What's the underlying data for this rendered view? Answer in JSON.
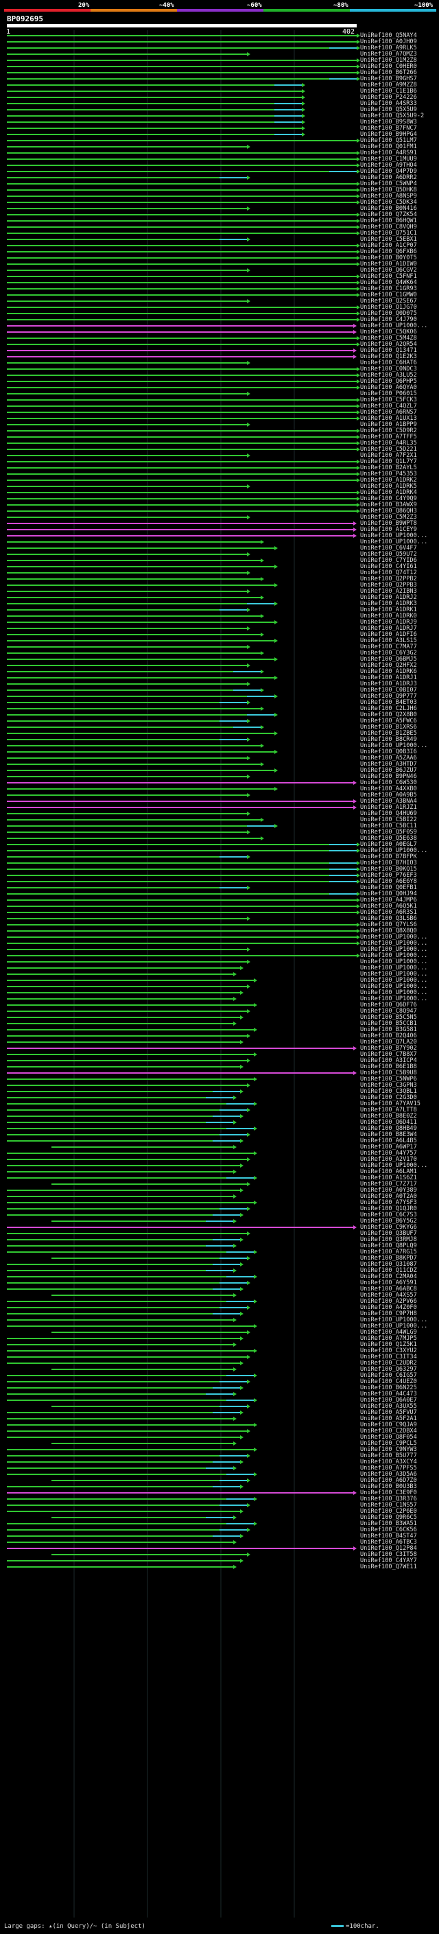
{
  "header": {
    "scale_labels": [
      "20%",
      "~40%",
      "~60%",
      "~80%",
      "~100%"
    ],
    "scale_colors": [
      "#e0202a",
      "#e07a14",
      "#8a2ec8",
      "#20b02a",
      "#26b7d8"
    ],
    "query_id": "BP092695",
    "pos_start": "1",
    "pos_end": "402"
  },
  "colors": {
    "green": "#31c832",
    "cyan": "#3ccbdc",
    "magenta": "#d64ad6",
    "white": "#ffffff"
  },
  "hits": [
    "UniRef100_Q5NAY4",
    "UniRef100_A0JH09",
    "UniRef100_A9RLK5",
    "UniRef100_A7QMZ3",
    "UniRef100_Q1M2Z8",
    "UniRef100_C0HER0",
    "UniRef100_B6T266",
    "UniRef100_B9GHS7",
    "UniRef100_A9MZZ8",
    "UniRef100_C1E1B6",
    "UniRef100_P24226",
    "UniRef100_A4SR33",
    "UniRef100_Q5X5U9",
    "UniRef100_Q5X5U9-2",
    "UniRef100_B9S8W3",
    "UniRef100_B7FNC7",
    "UniRef100_B9HPG4",
    "UniRef100_Q51LM7",
    "UniRef100_Q01FM1",
    "UniRef100_A4RS91",
    "UniRef100_C1MUU9",
    "UniRef100_A9THO4",
    "UniRef100_Q4P7D9",
    "UniRef100_A6DRR2",
    "UniRef100_C5WNP4",
    "UniRef100_Q5DHK8",
    "UniRef100_A8NSP9",
    "UniRef100_C5DK34",
    "UniRef100_B0N416",
    "UniRef100_Q7ZK54",
    "UniRef100_B6HQW1",
    "UniRef100_C8VQH9",
    "UniRef100_Q751C1",
    "UniRef100_C5EBX1",
    "UniRef100_A1CP07",
    "UniRef100_Q6FXB6",
    "UniRef100_B0Y0T5",
    "UniRef100_A1DIW0",
    "UniRef100_Q6CGV2",
    "UniRef100_C5FNF1",
    "UniRef100_Q4WK64",
    "UniRef100_C1GR93",
    "UniRef100_C1GMW0",
    "UniRef100_Q2SE67",
    "UniRef100_Q1JG70",
    "UniRef100_Q0D075",
    "UniRef100_C4J790",
    "UniRef100_UP1000...",
    "UniRef100_C5QK06",
    "UniRef100_C5M4Z8",
    "UniRef100_A2QR54",
    "UniRef100_Q13471",
    "UniRef100_Q1E2K3",
    "UniRef100_C6HAT6",
    "UniRef100_C0NDC3",
    "UniRef100_A3LU52",
    "UniRef100_Q6PHP5",
    "UniRef100_A6QYA0",
    "UniRef100_P06015",
    "UniRef100_C5FCK3",
    "UniRef100_C4QZL7",
    "UniRef100_A6RNS7",
    "UniRef100_A1UX13",
    "UniRef100_A1BPP9",
    "UniRef100_C5D9R2",
    "UniRef100_A7TFF5",
    "UniRef100_A4RL35",
    "UniRef100_C5D221",
    "UniRef100_A7F2X1",
    "UniRef100_Q1L7Y7",
    "UniRef100_B2AYL5",
    "UniRef100_P45353",
    "UniRef100_A1DRK2",
    "UniRef100_A1DRK5",
    "UniRef100_A1DRK4",
    "UniRef100_C4Y9Q9",
    "UniRef100_B3AWX9",
    "UniRef100_Q86QH3",
    "UniRef100_C5M2Z3",
    "UniRef100_B9WPT8",
    "UniRef100_A1CEY9",
    "UniRef100_UP1000...",
    "UniRef100_UP1000...",
    "UniRef100_C6V4F7",
    "UniRef100_Q59U72",
    "UniRef100_C7YID6",
    "UniRef100_C4YI61",
    "UniRef100_Q74T12",
    "UniRef100_Q2PPB2",
    "UniRef100_Q2PPB3",
    "UniRef100_A2IBN3",
    "UniRef100_A1DRJ2",
    "UniRef100_A1DRK3",
    "UniRef100_A1DRK1",
    "UniRef100_A1DRK0",
    "UniRef100_A1DRJ9",
    "UniRef100_A1DRJ7",
    "UniRef100_A1DFI6",
    "UniRef100_A3LS15",
    "UniRef100_C7MA77",
    "UniRef100_C6Y3G2",
    "UniRef100_Q6BMJ5",
    "UniRef100_Q2HFX2",
    "UniRef100_A1DRK6",
    "UniRef100_A1DRJ1",
    "UniRef100_A1DRJ3",
    "UniRef100_C0BI07",
    "UniRef100_Q9P777",
    "UniRef100_B4ET03",
    "UniRef100_C2LJH6",
    "UniRef100_Q2X8B0",
    "UniRef100_A5FWC6",
    "UniRef100_B1XRS6",
    "UniRef100_B1ZBE5",
    "UniRef100_B8CR49",
    "UniRef100_UP1000...",
    "UniRef100_Q0B3I6",
    "UniRef100_A5ZAA6",
    "UniRef100_A3HTD7",
    "UniRef100_B6JZU7",
    "UniRef100_B9PN46",
    "UniRef100_C6W530",
    "UniRef100_A4XXB0",
    "UniRef100_A0A9B5",
    "UniRef100_A3BNA4",
    "UniRef100_A1RJZ1",
    "UniRef100_Q4HU69",
    "UniRef100_C5BI22",
    "UniRef100_C5BC11",
    "UniRef100_Q5F0S9",
    "UniRef100_Q5E638",
    "UniRef100_A0EGL7",
    "UniRef100_UP1000...",
    "UniRef100_B7BFPK",
    "UniRef100_B7HIO3",
    "UniRef100_B0KQ15",
    "UniRef100_P76EF3",
    "UniRef100_A6E6Y8",
    "UniRef100_Q0EFB1",
    "UniRef100_Q0HJ94",
    "UniRef100_A4JMP6",
    "UniRef100_A6Q5K1",
    "UniRef100_A6R3S1",
    "UniRef100_Q3LSB6",
    "UniRef100_Q7YLS6",
    "UniRef100_Q8X8Q0",
    "UniRef100_UP1000...",
    "UniRef100_UP1000...",
    "UniRef100_UP1000...",
    "UniRef100_UP1000...",
    "UniRef100_UP1000...",
    "UniRef100_UP1000...",
    "UniRef100_UP1000...",
    "UniRef100_UP1000...",
    "UniRef100_UP1000...",
    "UniRef100_UP1000...",
    "UniRef100_UP1000...",
    "UniRef100_Q6DF76",
    "UniRef100_C8Q947",
    "UniRef100_B5C5N5",
    "UniRef100_B5CCB1",
    "UniRef100_B3G581",
    "UniRef100_B2Q406",
    "UniRef100_Q7LA20",
    "UniRef100_B7Y902",
    "UniRef100_C7B8X7",
    "UniRef100_A3ICP4",
    "UniRef100_B6E1B8",
    "UniRef100_C5B9U8",
    "UniRef100_C5NWP6",
    "UniRef100_C3GPN3",
    "UniRef100_C3QBL1",
    "UniRef100_C2G3D0",
    "UniRef100_A7YAV15",
    "UniRef100_A7LTT8",
    "UniRef100_B8E0Z2",
    "UniRef100_Q6D411",
    "UniRef100_Q8HB49",
    "UniRef100_B8E3W4",
    "UniRef100_A6L4B5",
    "UniRef100_A6WP17",
    "UniRef100_A4Y757",
    "UniRef100_A2V170",
    "UniRef100_UP1000...",
    "UniRef100_A6LAM1",
    "UniRef100_A1S6Z1",
    "UniRef100_C7Z717",
    "UniRef100_A0Y389",
    "UniRef100_A0T2A0",
    "UniRef100_A7YSF3",
    "UniRef100_Q1QJR0",
    "UniRef100_C6C7S3",
    "UniRef100_B6Y5G2",
    "UniRef100_C9KYG6",
    "UniRef100_Q3BUF7",
    "UniRef100_Q3RMJ8",
    "UniRef100_Q8PLQ9",
    "UniRef100_A7RG15",
    "UniRef100_B8KPD7",
    "UniRef100_Q31087",
    "UniRef100_Q11CDZ",
    "UniRef100_C2MA04",
    "UniRef100_A6Y591",
    "UniRef100_A6ABC8",
    "UniRef100_A4XS57",
    "UniRef100_A2PV66",
    "UniRef100_A4Z0F0",
    "UniRef100_C9P7H8",
    "UniRef100_UP1000...",
    "UniRef100_UP1000...",
    "UniRef100_A4WLG9",
    "UniRef100_A7MJP5",
    "UniRef100_Q1Z5K1",
    "UniRef100_C3XYU2",
    "UniRef100_C3IT34",
    "UniRef100_C2UDR2",
    "UniRef100_Q63297",
    "UniRef100_C6IG57",
    "UniRef100_C4UEZ0",
    "UniRef100_B6N225",
    "UniRef100_A4C473",
    "UniRef100_Q6A0E7",
    "UniRef100_A3UX55",
    "UniRef100_A5FVU7",
    "UniRef100_A5F2A1",
    "UniRef100_C9QJA9",
    "UniRef100_C2DBX4",
    "UniRef100_Q8F054",
    "UniRef100_C9PCL5",
    "UniRef100_C9NYW3",
    "UniRef100_B5U777",
    "UniRef100_A3XCY4",
    "UniRef100_A7PFS5",
    "UniRef100_A3D5A6",
    "UniRef100_A6D7Z0",
    "UniRef100_B0U3B3",
    "UniRef100_C3E9F0",
    "UniRef100_Q3R376",
    "UniRef100_C1NS57",
    "UniRef100_C2P6E0",
    "UniRef100_Q9R6C5",
    "UniRef100_B3WA51",
    "UniRef100_C6CK56",
    "UniRef100_B4ST47",
    "UniRef100_A6TBC3",
    "UniRef100_Q12P84",
    "UniRef100_C3IT58",
    "UniRef100_C4YAY7",
    "UniRef100_Q7WE11"
  ],
  "footer": {
    "left": "Large gaps: ▴(in Query)/~ (in Subject)",
    "right": "=100char."
  }
}
